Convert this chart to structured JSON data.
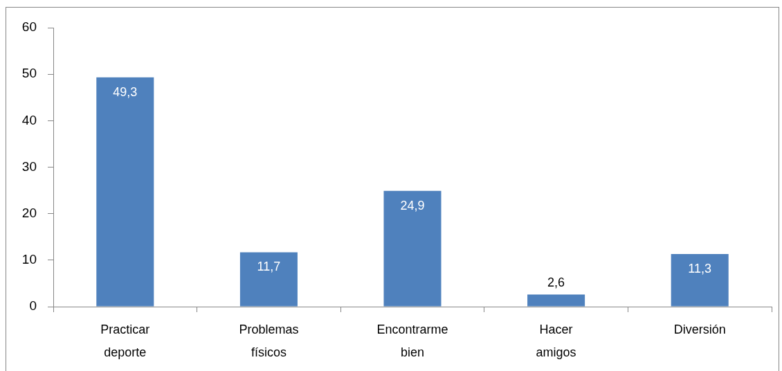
{
  "chart_data": {
    "type": "bar",
    "categories": [
      "Practicar deporte",
      "Problemas físicos",
      "Encontrarme bien",
      "Hacer amigos",
      "Diversión"
    ],
    "values": [
      49.3,
      11.7,
      24.9,
      2.6,
      11.3
    ],
    "value_labels": [
      "49,3",
      "11,7",
      "24,9",
      "2,6",
      "11,3"
    ],
    "color": "#4f81bd",
    "ylim": [
      0,
      60
    ],
    "yticks": [
      0,
      10,
      20,
      30,
      40,
      50,
      60
    ]
  }
}
